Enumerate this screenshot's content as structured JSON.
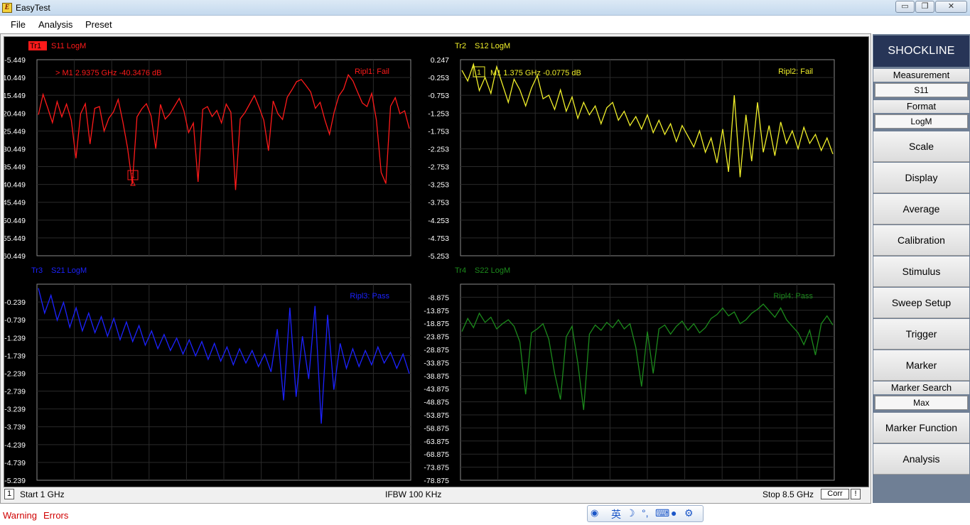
{
  "window": {
    "title": "EasyTest",
    "min_glyph": "▭",
    "max_glyph": "❐",
    "close_glyph": "✕"
  },
  "menu": {
    "items": [
      "File",
      "Analysis",
      "Preset"
    ]
  },
  "sidebar": {
    "brand": "SHOCKLINE",
    "measurement_label": "Measurement",
    "measurement_value": "S11",
    "format_label": "Format",
    "format_value": "LogM",
    "buttons": [
      "Scale",
      "Display",
      "Average",
      "Calibration",
      "Stimulus",
      "Sweep Setup",
      "Trigger",
      "Marker"
    ],
    "marker_search_label": "Marker Search",
    "marker_search_value": "Max",
    "buttons2": [
      "Marker Function",
      "Analysis"
    ]
  },
  "status": {
    "channel": "1",
    "start": "Start 1 GHz",
    "ifbw": "IFBW 100 KHz",
    "stop": "Stop 8.5 GHz",
    "corr": "Corr",
    "flag": "!"
  },
  "bottom": {
    "warning": "Warning",
    "errors": "Errors"
  },
  "colors": {
    "tr1": "#ff1a1a",
    "tr2": "#f0ef2a",
    "tr3": "#1c22ff",
    "tr4": "#1c8a1c",
    "grid": "#2a2a2a",
    "sidebar_bg": "#6f7f95",
    "brand_bg": "#273557"
  },
  "chart_data": [
    {
      "type": "line",
      "trace": "Tr1",
      "title": "S11 LogM",
      "ytick_labels": [
        "-5.449",
        "10.449",
        "15.449",
        "20.449",
        "25.449",
        "30.449",
        "35.449",
        "40.449",
        "45.449",
        "50.449",
        "55.449",
        "60.449"
      ],
      "y": [
        -20.9,
        -15.2,
        -19.0,
        -23.1,
        -17.2,
        -21.5,
        -17.9,
        -22.4,
        -33.1,
        -20.6,
        -17.8,
        -29.1,
        -19.1,
        -18.6,
        -25.5,
        -21.9,
        -20.1,
        -16.6,
        -22.9,
        -30.2,
        -40.3,
        -21.5,
        -19.3,
        -17.8,
        -21.2,
        -30.4,
        -18.0,
        -22.1,
        -20.7,
        -18.5,
        -16.3,
        -19.8,
        -25.9,
        -23.2,
        -39.7,
        -19.4,
        -18.6,
        -21.4,
        -19.7,
        -23.2,
        -17.9,
        -20.2,
        -42.0,
        -22.0,
        -20.3,
        -17.9,
        -15.5,
        -18.8,
        -22.4,
        -31.0,
        -17.0,
        -20.6,
        -22.2,
        -16.0,
        -13.9,
        -11.6,
        -11.0,
        -12.7,
        -14.5,
        -19.1,
        -17.4,
        -22.3,
        -26.4,
        -20.1,
        -15.6,
        -13.7,
        -9.7,
        -11.4,
        -14.6,
        -17.6,
        -18.6,
        -14.9,
        -22.4,
        -37.1,
        -40.2,
        -18.5,
        -16.1,
        -20.6,
        -19.8,
        -24.8
      ],
      "marker": {
        "label": "M1",
        "freq": "2.9375 GHz",
        "value": "-40.3476 dB",
        "prefix": ">"
      },
      "ripple": "Ripl1: Fail"
    },
    {
      "type": "line",
      "trace": "Tr2",
      "title": "S12 LogM",
      "ytick_labels": [
        "0.247",
        "-0.253",
        "-0.753",
        "-1.253",
        "-1.753",
        "-2.253",
        "-2.753",
        "-3.253",
        "-3.753",
        "-4.253",
        "-4.753",
        "-5.253"
      ],
      "y": [
        -0.05,
        -0.35,
        0.12,
        -0.62,
        -0.25,
        -0.7,
        0.05,
        -0.45,
        -0.95,
        -0.3,
        -0.6,
        -1.05,
        -0.55,
        -0.2,
        -0.85,
        -0.75,
        -1.15,
        -0.6,
        -1.2,
        -0.8,
        -1.4,
        -0.95,
        -1.3,
        -1.05,
        -1.55,
        -1.1,
        -0.95,
        -1.45,
        -1.2,
        -1.6,
        -1.35,
        -1.7,
        -1.3,
        -1.8,
        -1.45,
        -1.85,
        -1.55,
        -2.05,
        -1.6,
        -1.9,
        -2.2,
        -1.75,
        -2.35,
        -1.95,
        -2.65,
        -1.7,
        -2.9,
        -0.75,
        -3.05,
        -1.3,
        -2.6,
        -0.95,
        -2.35,
        -1.6,
        -2.45,
        -1.5,
        -2.1,
        -1.75,
        -2.25,
        -1.65,
        -2.1,
        -1.85,
        -2.3,
        -1.95,
        -2.4
      ],
      "marker": {
        "label": "M1",
        "freq": "1.375 GHz",
        "value": "-0.0775 dB",
        "prefix": ""
      },
      "ripple": "Ripl2: Fail"
    },
    {
      "type": "line",
      "trace": "Tr3",
      "title": "S21 LogM",
      "ytick_labels": [
        "-0.239",
        "-0.739",
        "-1.239",
        "-1.739",
        "-2.239",
        "-2.739",
        "-3.239",
        "-3.739",
        "-4.239",
        "-4.739",
        "-5.239"
      ],
      "y": [
        0.15,
        -0.55,
        -0.05,
        -0.75,
        -0.25,
        -0.95,
        -0.4,
        -1.05,
        -0.55,
        -1.1,
        -0.65,
        -1.2,
        -0.7,
        -1.3,
        -0.8,
        -1.35,
        -0.9,
        -1.45,
        -1.05,
        -1.55,
        -1.15,
        -1.6,
        -1.25,
        -1.7,
        -1.3,
        -1.75,
        -1.35,
        -1.85,
        -1.4,
        -1.9,
        -1.5,
        -2.0,
        -1.55,
        -1.95,
        -1.6,
        -2.05,
        -1.7,
        -2.2,
        -1.0,
        -3.0,
        -0.4,
        -2.9,
        -1.2,
        -2.4,
        -0.35,
        -3.65,
        -0.6,
        -2.7,
        -1.4,
        -2.1,
        -1.55,
        -2.05,
        -1.6,
        -2.0,
        -1.5,
        -1.95,
        -1.65,
        -2.1,
        -1.7,
        -2.25
      ],
      "ripple": "Ripl3: Pass"
    },
    {
      "type": "line",
      "trace": "Tr4",
      "title": "S22 LogM",
      "ytick_labels": [
        "-8.875",
        "-13.875",
        "-18.875",
        "-23.875",
        "-28.875",
        "-33.875",
        "-38.875",
        "-43.875",
        "-48.875",
        "-53.875",
        "-58.875",
        "-63.875",
        "-68.875",
        "-73.875",
        "-78.875"
      ],
      "y": [
        -22.0,
        -17.0,
        -20.5,
        -15.0,
        -18.5,
        -16.5,
        -21.0,
        -19.0,
        -17.5,
        -20.0,
        -26.0,
        -46.0,
        -22.5,
        -21.0,
        -19.0,
        -25.0,
        -38.0,
        -48.0,
        -24.0,
        -20.0,
        -34.0,
        -52.0,
        -23.0,
        -19.5,
        -21.5,
        -18.5,
        -20.5,
        -17.5,
        -21.0,
        -19.0,
        -28.0,
        -43.0,
        -22.0,
        -38.0,
        -21.0,
        -19.5,
        -23.0,
        -20.0,
        -18.0,
        -21.5,
        -19.0,
        -22.5,
        -20.5,
        -17.0,
        -15.5,
        -13.0,
        -16.0,
        -14.5,
        -19.0,
        -17.5,
        -15.0,
        -13.5,
        -11.5,
        -14.0,
        -16.5,
        -13.0,
        -17.5,
        -20.0,
        -22.5,
        -27.0,
        -21.5,
        -31.0,
        -19.0,
        -16.0,
        -19.5
      ],
      "ripple": "Ripl4: Pass"
    }
  ]
}
